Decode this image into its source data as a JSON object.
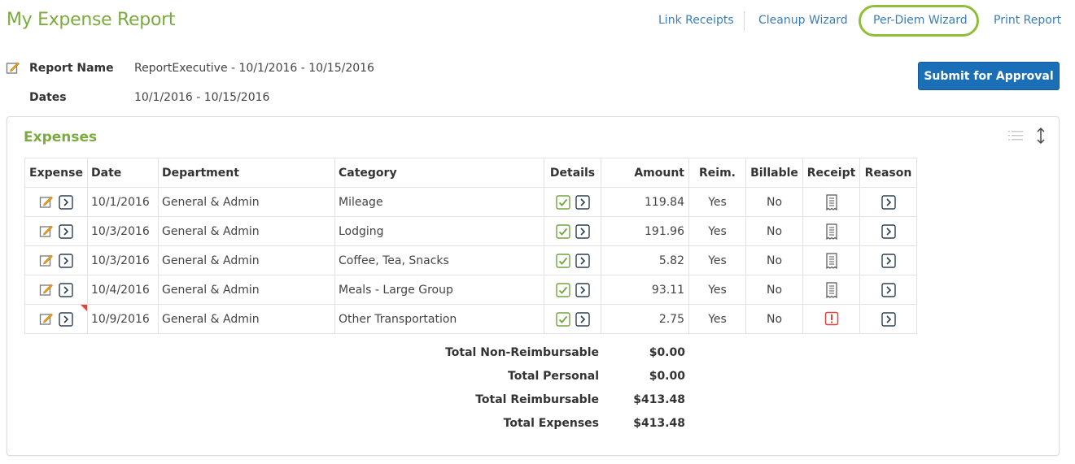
{
  "header": {
    "title": "My Expense Report",
    "links": [
      "Link Receipts",
      "Cleanup Wizard",
      "Per-Diem Wizard",
      "Print Report"
    ],
    "highlighted_link": "Per-Diem Wizard"
  },
  "report": {
    "name_label": "Report Name",
    "name_value": "ReportExecutive - 10/1/2016 - 10/15/2016",
    "dates_label": "Dates",
    "dates_value": "10/1/2016 - 10/15/2016",
    "submit_label": "Submit for Approval"
  },
  "expenses": {
    "title": "Expenses",
    "columns": {
      "expense": "Expense",
      "date": "Date",
      "department": "Department",
      "category": "Category",
      "details": "Details",
      "amount": "Amount",
      "reim": "Reim.",
      "billable": "Billable",
      "receipt": "Receipt",
      "reason": "Reason"
    },
    "rows": [
      {
        "date": "10/1/2016",
        "department": "General & Admin",
        "category": "Mileage",
        "amount": "119.84",
        "reim": "Yes",
        "billable": "No",
        "receipt": "receipt-icon",
        "flag": false
      },
      {
        "date": "10/3/2016",
        "department": "General & Admin",
        "category": "Lodging",
        "amount": "191.96",
        "reim": "Yes",
        "billable": "No",
        "receipt": "receipt-icon",
        "flag": false
      },
      {
        "date": "10/3/2016",
        "department": "General & Admin",
        "category": "Coffee, Tea, Snacks",
        "amount": "5.82",
        "reim": "Yes",
        "billable": "No",
        "receipt": "receipt-icon",
        "flag": false
      },
      {
        "date": "10/4/2016",
        "department": "General & Admin",
        "category": "Meals - Large Group",
        "amount": "93.11",
        "reim": "Yes",
        "billable": "No",
        "receipt": "receipt-icon",
        "flag": false
      },
      {
        "date": "10/9/2016",
        "department": "General & Admin",
        "category": "Other Transportation",
        "amount": "2.75",
        "reim": "Yes",
        "billable": "No",
        "receipt": "missing-receipt-icon",
        "flag": true
      }
    ]
  },
  "totals": [
    {
      "label": "Total Non-Reimbursable",
      "value": "$0.00"
    },
    {
      "label": "Total Personal",
      "value": "$0.00"
    },
    {
      "label": "Total Reimbursable",
      "value": "$413.48"
    },
    {
      "label": "Total Expenses",
      "value": "$413.48"
    }
  ],
  "colors": {
    "title_green": "#7cab3f",
    "link_blue": "#3a7db8",
    "button_blue": "#1a6fb6",
    "highlight_green": "#8fbf3a",
    "alert_red": "#e0443c"
  }
}
